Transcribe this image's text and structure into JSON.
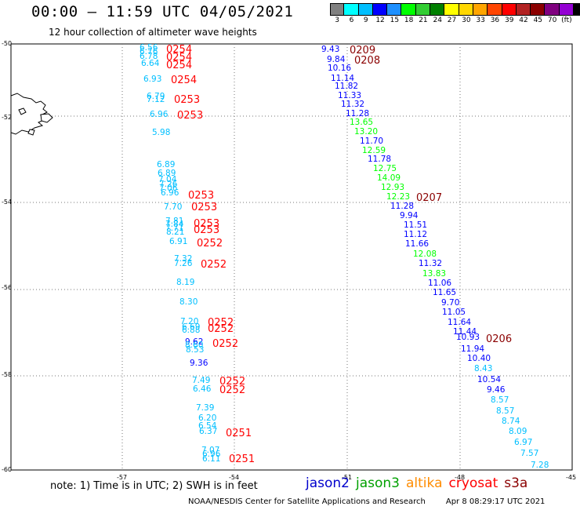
{
  "title": "00:00 – 11:59 UTC 04/05/2021",
  "subtitle": "12 hour collection of altimeter wave heights",
  "scale": {
    "colors": [
      "#808080",
      "#00ffff",
      "#00bfff",
      "#0000ff",
      "#1e90ff",
      "#00ff00",
      "#32cd32",
      "#008000",
      "#ffff00",
      "#ffd700",
      "#ffa500",
      "#ff4500",
      "#ff0000",
      "#b22222",
      "#8b0000",
      "#800080",
      "#9400d3",
      "#000000"
    ],
    "labels": [
      "3",
      "6",
      "9",
      "12",
      "15",
      "18",
      "21",
      "24",
      "27",
      "30",
      "33",
      "36",
      "39",
      "42",
      "45",
      "70",
      "(ft)"
    ]
  },
  "axes": {
    "lat_labels": [
      "-50",
      "-52",
      "-54",
      "-56",
      "-58",
      "-60"
    ],
    "lon_labels": [
      "-57",
      "-54",
      "-51",
      "-48",
      "-45"
    ]
  },
  "readings": [
    {
      "t": "6.56",
      "c": "#00bfff"
    },
    {
      "t": "6.76",
      "c": "#00bfff"
    },
    {
      "t": "6.78",
      "c": "#00bfff"
    },
    {
      "t": "6.64",
      "c": "#00bfff"
    },
    {
      "t": "6.93",
      "c": "#00bfff"
    },
    {
      "t": "6.79",
      "c": "#00bfff"
    },
    {
      "t": "7.12",
      "c": "#00bfff"
    },
    {
      "t": "6.96",
      "c": "#00bfff"
    },
    {
      "t": "5.98",
      "c": "#00bfff"
    },
    {
      "t": "6.89",
      "c": "#00bfff"
    },
    {
      "t": "6.89",
      "c": "#00bfff"
    },
    {
      "t": "7.04",
      "c": "#00bfff"
    },
    {
      "t": "7.26",
      "c": "#00bfff"
    },
    {
      "t": "7.06",
      "c": "#00bfff"
    },
    {
      "t": "6.96",
      "c": "#00bfff"
    },
    {
      "t": "7.70",
      "c": "#00bfff"
    },
    {
      "t": "7.81",
      "c": "#00bfff"
    },
    {
      "t": "7.84",
      "c": "#00bfff"
    },
    {
      "t": "7.71",
      "c": "#00bfff"
    },
    {
      "t": "8.21",
      "c": "#00bfff"
    },
    {
      "t": "6.91",
      "c": "#00bfff"
    },
    {
      "t": "7.32",
      "c": "#00bfff"
    },
    {
      "t": "7.26",
      "c": "#00bfff"
    },
    {
      "t": "8.19",
      "c": "#00bfff"
    },
    {
      "t": "8.30",
      "c": "#00bfff"
    },
    {
      "t": "7.20",
      "c": "#00bfff"
    },
    {
      "t": "6.69",
      "c": "#00bfff"
    },
    {
      "t": "6.88",
      "c": "#00bfff"
    },
    {
      "t": "9.62",
      "c": "#0000ff"
    },
    {
      "t": "8.60",
      "c": "#00bfff"
    },
    {
      "t": "8.53",
      "c": "#00bfff"
    },
    {
      "t": "9.36",
      "c": "#0000ff"
    },
    {
      "t": "7.49",
      "c": "#00bfff"
    },
    {
      "t": "6.46",
      "c": "#00bfff"
    },
    {
      "t": "7.39",
      "c": "#00bfff"
    },
    {
      "t": "6.20",
      "c": "#00bfff"
    },
    {
      "t": "6.54",
      "c": "#00bfff"
    },
    {
      "t": "6.37",
      "c": "#00bfff"
    },
    {
      "t": "7.07",
      "c": "#00bfff"
    },
    {
      "t": "6.96",
      "c": "#00bfff"
    },
    {
      "t": "6.11",
      "c": "#00bfff"
    },
    {
      "t": "9.43",
      "c": "#0000ff"
    },
    {
      "t": "9.84",
      "c": "#0000ff"
    },
    {
      "t": "10.16",
      "c": "#0000ff"
    },
    {
      "t": "11.14",
      "c": "#0000ff"
    },
    {
      "t": "11.82",
      "c": "#0000ff"
    },
    {
      "t": "11.33",
      "c": "#0000ff"
    },
    {
      "t": "11.32",
      "c": "#0000ff"
    },
    {
      "t": "11.28",
      "c": "#0000ff"
    },
    {
      "t": "13.65",
      "c": "#00ff00"
    },
    {
      "t": "13.20",
      "c": "#00ff00"
    },
    {
      "t": "11.70",
      "c": "#0000ff"
    },
    {
      "t": "12.59",
      "c": "#00ff00"
    },
    {
      "t": "11.78",
      "c": "#0000ff"
    },
    {
      "t": "12.75",
      "c": "#00ff00"
    },
    {
      "t": "14.09",
      "c": "#00ff00"
    },
    {
      "t": "12.93",
      "c": "#00ff00"
    },
    {
      "t": "12.23",
      "c": "#00ff00"
    },
    {
      "t": "11.28",
      "c": "#0000ff"
    },
    {
      "t": "9.94",
      "c": "#0000ff"
    },
    {
      "t": "11.51",
      "c": "#0000ff"
    },
    {
      "t": "11.12",
      "c": "#0000ff"
    },
    {
      "t": "11.66",
      "c": "#0000ff"
    },
    {
      "t": "12.08",
      "c": "#00ff00"
    },
    {
      "t": "11.32",
      "c": "#0000ff"
    },
    {
      "t": "13.83",
      "c": "#00ff00"
    },
    {
      "t": "11.06",
      "c": "#0000ff"
    },
    {
      "t": "11.65",
      "c": "#0000ff"
    },
    {
      "t": "9.70",
      "c": "#0000ff"
    },
    {
      "t": "11.05",
      "c": "#0000ff"
    },
    {
      "t": "11.64",
      "c": "#0000ff"
    },
    {
      "t": "11.44",
      "c": "#0000ff"
    },
    {
      "t": "10.93",
      "c": "#0000ff"
    },
    {
      "t": "11.94",
      "c": "#0000ff"
    },
    {
      "t": "10.40",
      "c": "#0000ff"
    },
    {
      "t": "8.43",
      "c": "#00bfff"
    },
    {
      "t": "10.54",
      "c": "#0000ff"
    },
    {
      "t": "9.46",
      "c": "#0000ff"
    },
    {
      "t": "8.57",
      "c": "#00bfff"
    },
    {
      "t": "8.57",
      "c": "#00bfff"
    },
    {
      "t": "8.74",
      "c": "#00bfff"
    },
    {
      "t": "8.09",
      "c": "#00bfff"
    },
    {
      "t": "6.97",
      "c": "#00bfff"
    },
    {
      "t": "7.57",
      "c": "#00bfff"
    },
    {
      "t": "7.28",
      "c": "#00bfff"
    }
  ],
  "time_labels": [
    {
      "t": "0254",
      "c": "#ff0000"
    },
    {
      "t": "0254",
      "c": "#ff0000"
    },
    {
      "t": "0254",
      "c": "#ff0000"
    },
    {
      "t": "0254",
      "c": "#ff0000"
    },
    {
      "t": "0253",
      "c": "#ff0000"
    },
    {
      "t": "0253",
      "c": "#ff0000"
    },
    {
      "t": "0253",
      "c": "#ff0000"
    },
    {
      "t": "0253",
      "c": "#ff0000"
    },
    {
      "t": "0253",
      "c": "#ff0000"
    },
    {
      "t": "0253",
      "c": "#ff0000"
    },
    {
      "t": "0252",
      "c": "#ff0000"
    },
    {
      "t": "0252",
      "c": "#ff0000"
    },
    {
      "t": "0252",
      "c": "#ff0000"
    },
    {
      "t": "0252",
      "c": "#ff0000"
    },
    {
      "t": "0252",
      "c": "#ff0000"
    },
    {
      "t": "0252",
      "c": "#ff0000"
    },
    {
      "t": "0252",
      "c": "#ff0000"
    },
    {
      "t": "0251",
      "c": "#ff0000"
    },
    {
      "t": "0251",
      "c": "#ff0000"
    },
    {
      "t": "0209",
      "c": "#8b0000"
    },
    {
      "t": "0208",
      "c": "#8b0000"
    },
    {
      "t": "0207",
      "c": "#8b0000"
    },
    {
      "t": "0206",
      "c": "#8b0000"
    }
  ],
  "note": "note: 1) Time is in UTC; 2) SWH is in feet",
  "legend": [
    {
      "label": "jason2",
      "color": "#0000cd"
    },
    {
      "label": "jason3",
      "color": "#00a000"
    },
    {
      "label": "altika",
      "color": "#ff8c00"
    },
    {
      "label": "cryosat",
      "color": "#ff0000"
    },
    {
      "label": "s3a",
      "color": "#8b0000"
    }
  ],
  "credit": {
    "org": "NOAA/NESDIS Center for Satellite Applications and Research",
    "timestamp": "Apr  8 08:29:17 UTC 2021"
  }
}
